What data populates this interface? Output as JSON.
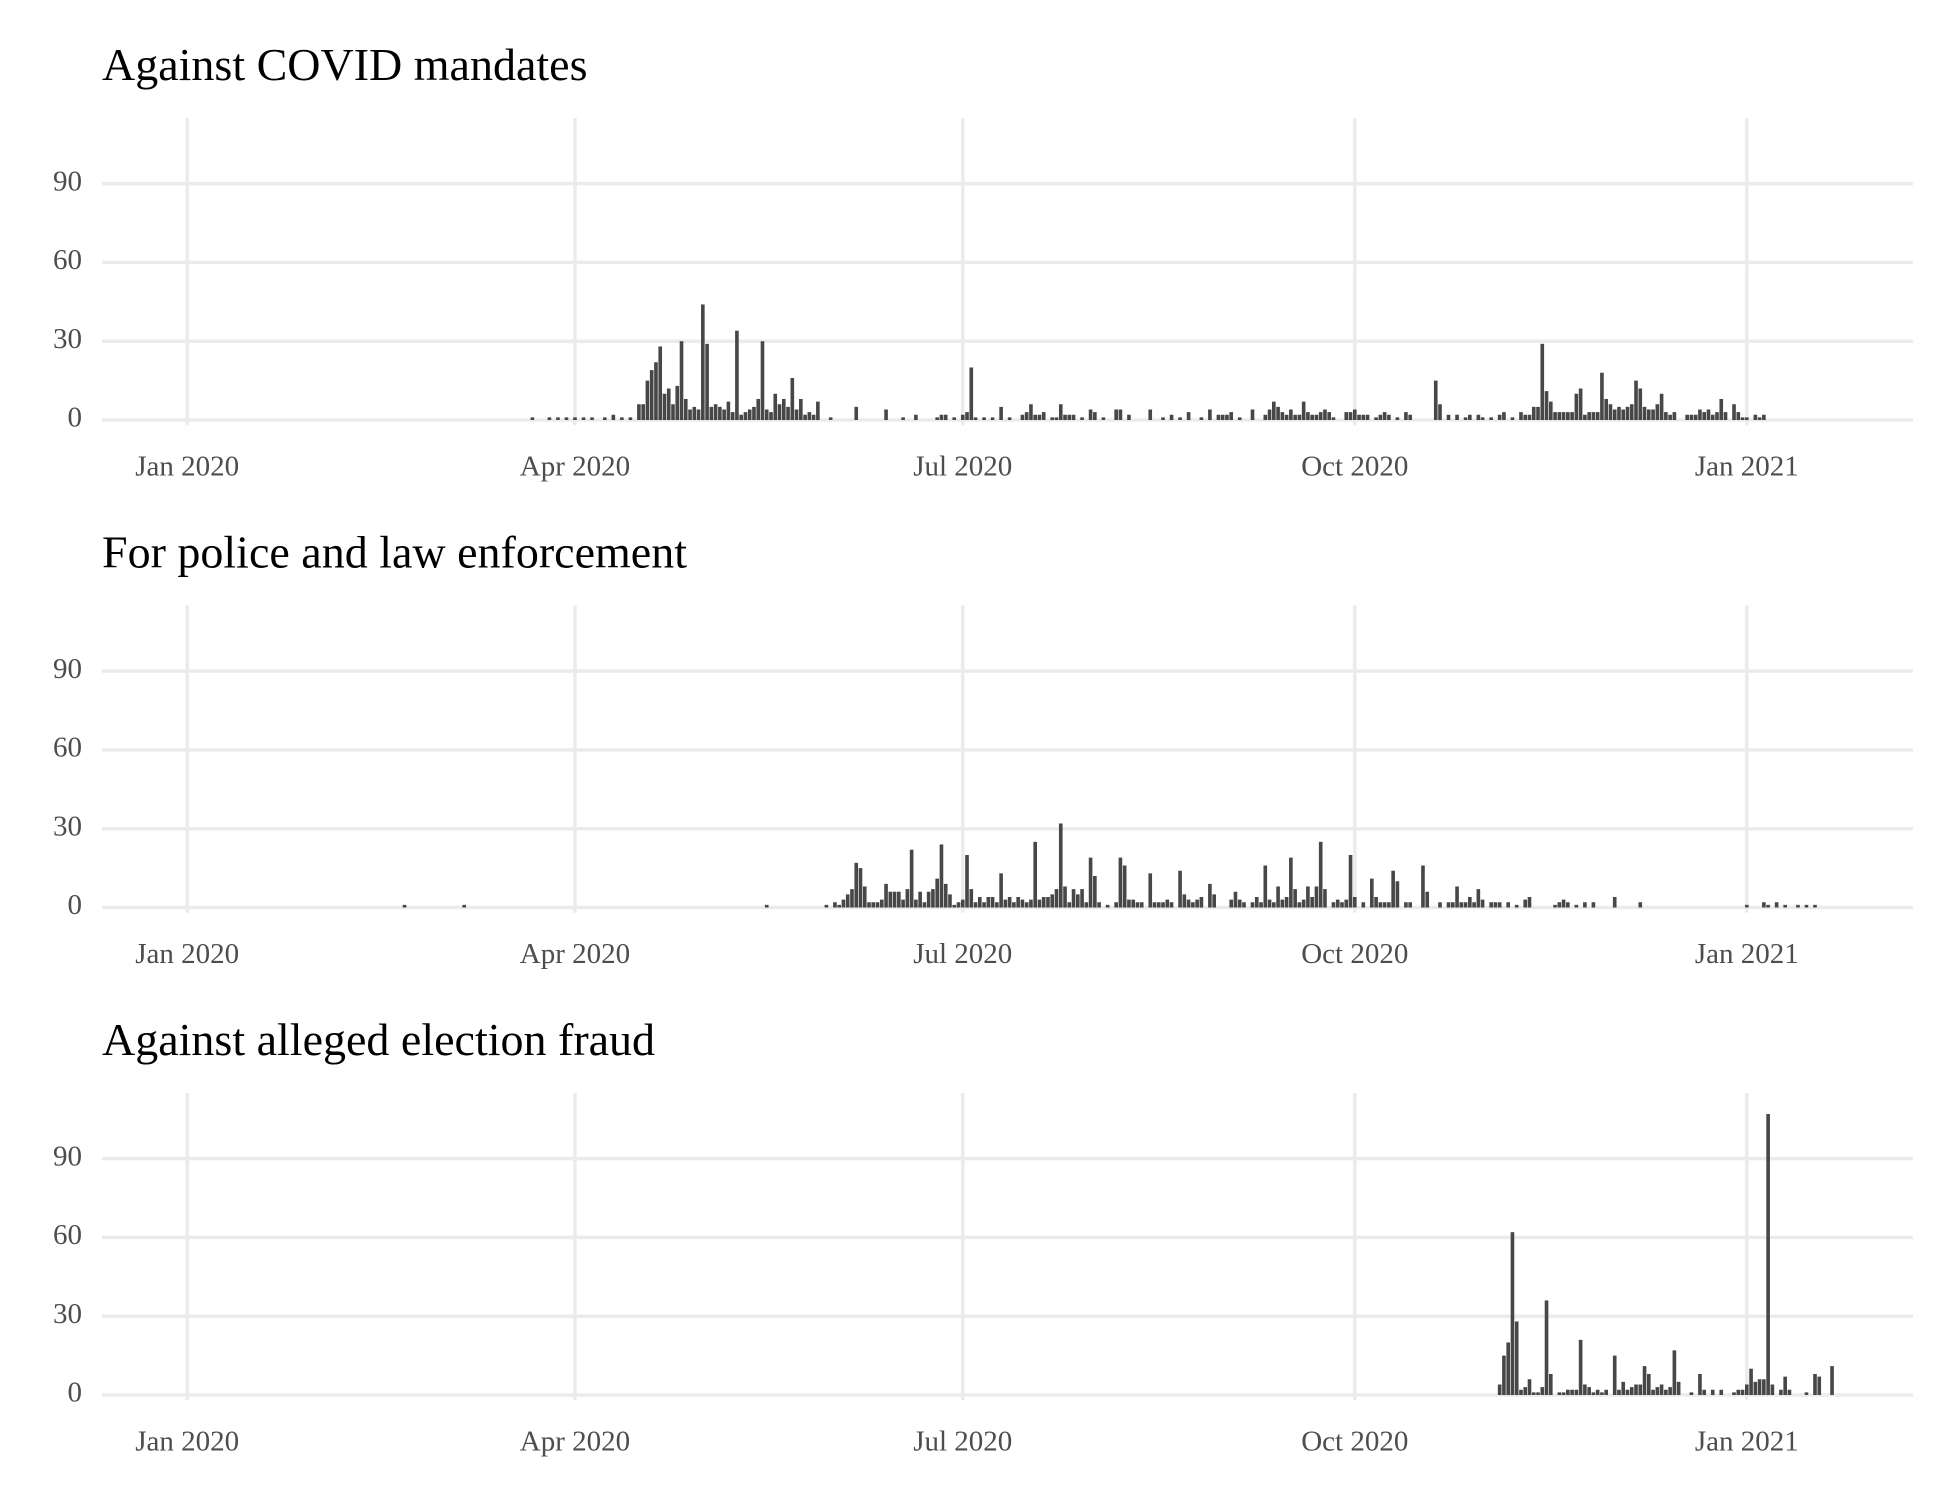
{
  "chart_data": [
    {
      "type": "bar",
      "title": "Against COVID mandates",
      "color": "#474747",
      "grid": true,
      "xlim": [
        -20,
        405
      ],
      "ylim": [
        -2,
        115
      ],
      "yticks": [
        0,
        30,
        60,
        90
      ],
      "xticks": [
        {
          "value": 0,
          "label": "Jan 2020"
        },
        {
          "value": 91,
          "label": "Apr 2020"
        },
        {
          "value": 182,
          "label": "Jul 2020"
        },
        {
          "value": 274,
          "label": "Oct 2020"
        },
        {
          "value": 366,
          "label": "Jan 2021"
        }
      ],
      "x": [
        81,
        85,
        87,
        89,
        91,
        93,
        95,
        98,
        100,
        102,
        104,
        106,
        107,
        108,
        109,
        110,
        111,
        112,
        113,
        114,
        115,
        116,
        117,
        118,
        119,
        120,
        121,
        122,
        123,
        124,
        125,
        126,
        127,
        128,
        129,
        130,
        131,
        132,
        133,
        134,
        135,
        136,
        137,
        138,
        139,
        140,
        141,
        142,
        143,
        144,
        145,
        146,
        147,
        148,
        151,
        157,
        164,
        168,
        171,
        176,
        177,
        178,
        180,
        182,
        183,
        184,
        185,
        187,
        189,
        191,
        193,
        196,
        197,
        198,
        199,
        200,
        201,
        203,
        204,
        205,
        206,
        207,
        208,
        210,
        212,
        213,
        215,
        218,
        219,
        221,
        226,
        229,
        231,
        233,
        235,
        238,
        240,
        242,
        243,
        244,
        245,
        247,
        250,
        253,
        254,
        255,
        256,
        257,
        258,
        259,
        260,
        261,
        262,
        263,
        264,
        265,
        266,
        267,
        268,
        269,
        272,
        273,
        274,
        275,
        276,
        277,
        279,
        280,
        281,
        282,
        284,
        286,
        287,
        293,
        294,
        296,
        298,
        300,
        301,
        303,
        304,
        306,
        308,
        309,
        311,
        313,
        314,
        315,
        316,
        317,
        318,
        319,
        320,
        321,
        322,
        323,
        324,
        325,
        326,
        327,
        328,
        329,
        330,
        331,
        332,
        333,
        334,
        335,
        336,
        337,
        338,
        339,
        340,
        341,
        342,
        343,
        344,
        345,
        346,
        347,
        348,
        349,
        352,
        353,
        354,
        355,
        356,
        357,
        358,
        359,
        360,
        361,
        363,
        364,
        365,
        366,
        368,
        369,
        370
      ],
      "values": [
        1,
        1,
        1,
        1,
        1,
        1,
        1,
        1,
        2,
        1,
        1,
        6,
        6,
        15,
        19,
        22,
        28,
        10,
        12,
        6,
        13,
        30,
        8,
        4,
        5,
        4,
        44,
        29,
        5,
        6,
        5,
        4,
        7,
        3,
        34,
        2,
        3,
        4,
        5,
        8,
        30,
        4,
        3,
        10,
        6,
        8,
        5,
        16,
        4,
        8,
        2,
        3,
        2,
        7,
        1,
        5,
        4,
        1,
        2,
        1,
        2,
        2,
        1,
        2,
        3,
        20,
        1,
        1,
        1,
        5,
        1,
        2,
        3,
        6,
        2,
        2,
        3,
        1,
        1,
        6,
        2,
        2,
        2,
        1,
        4,
        3,
        1,
        4,
        4,
        2,
        4,
        1,
        2,
        1,
        3,
        1,
        4,
        2,
        2,
        2,
        3,
        1,
        4,
        2,
        4,
        7,
        5,
        3,
        2,
        4,
        2,
        2,
        7,
        3,
        2,
        2,
        3,
        4,
        3,
        1,
        3,
        3,
        4,
        2,
        2,
        2,
        1,
        2,
        3,
        2,
        1,
        3,
        2,
        15,
        6,
        2,
        2,
        1,
        2,
        2,
        1,
        1,
        2,
        3,
        1,
        3,
        2,
        2,
        5,
        5,
        29,
        11,
        7,
        3,
        3,
        3,
        3,
        3,
        10,
        12,
        2,
        3,
        3,
        3,
        18,
        8,
        6,
        4,
        5,
        4,
        5,
        6,
        15,
        12,
        5,
        4,
        4,
        6,
        10,
        3,
        2,
        3,
        2,
        2,
        2,
        4,
        3,
        4,
        2,
        3,
        8,
        3,
        6,
        3,
        1,
        1,
        2,
        1,
        2
      ]
    },
    {
      "type": "bar",
      "title": "For police and law enforcement",
      "color": "#474747",
      "grid": true,
      "xlim": [
        -20,
        405
      ],
      "ylim": [
        -2,
        115
      ],
      "yticks": [
        0,
        30,
        60,
        90
      ],
      "xticks": [
        {
          "value": 0,
          "label": "Jan 2020"
        },
        {
          "value": 91,
          "label": "Apr 2020"
        },
        {
          "value": 182,
          "label": "Jul 2020"
        },
        {
          "value": 274,
          "label": "Oct 2020"
        },
        {
          "value": 366,
          "label": "Jan 2021"
        }
      ],
      "x": [
        51,
        65,
        136,
        150,
        152,
        153,
        154,
        155,
        156,
        157,
        158,
        159,
        160,
        161,
        162,
        163,
        164,
        165,
        166,
        167,
        168,
        169,
        170,
        171,
        172,
        173,
        174,
        175,
        176,
        177,
        178,
        179,
        180,
        181,
        182,
        183,
        184,
        185,
        186,
        187,
        188,
        189,
        190,
        191,
        192,
        193,
        194,
        195,
        196,
        197,
        198,
        199,
        200,
        201,
        202,
        203,
        204,
        205,
        206,
        207,
        208,
        209,
        210,
        211,
        212,
        213,
        214,
        216,
        218,
        219,
        220,
        221,
        222,
        223,
        224,
        226,
        227,
        228,
        229,
        230,
        231,
        233,
        234,
        235,
        236,
        237,
        238,
        240,
        241,
        245,
        246,
        247,
        248,
        250,
        251,
        252,
        253,
        254,
        255,
        256,
        257,
        258,
        259,
        260,
        261,
        262,
        263,
        264,
        265,
        266,
        267,
        269,
        270,
        271,
        272,
        273,
        274,
        276,
        278,
        279,
        280,
        281,
        282,
        283,
        284,
        286,
        287,
        290,
        291,
        294,
        296,
        297,
        298,
        299,
        300,
        301,
        302,
        303,
        304,
        306,
        307,
        308,
        310,
        312,
        314,
        315,
        321,
        322,
        323,
        324,
        326,
        328,
        330,
        335,
        341,
        366,
        370,
        371,
        373,
        375,
        378,
        380,
        382
      ],
      "values": [
        1,
        1,
        1,
        1,
        2,
        1,
        3,
        5,
        7,
        17,
        15,
        8,
        2,
        2,
        2,
        3,
        9,
        6,
        6,
        6,
        3,
        7,
        22,
        3,
        6,
        2,
        6,
        7,
        11,
        24,
        9,
        5,
        1,
        2,
        3,
        20,
        7,
        2,
        4,
        2,
        4,
        4,
        2,
        13,
        3,
        4,
        2,
        4,
        3,
        2,
        3,
        25,
        3,
        4,
        4,
        5,
        7,
        32,
        8,
        2,
        7,
        5,
        7,
        2,
        19,
        12,
        2,
        1,
        2,
        19,
        16,
        3,
        3,
        2,
        2,
        13,
        2,
        2,
        2,
        3,
        2,
        14,
        5,
        3,
        2,
        3,
        4,
        9,
        5,
        3,
        6,
        3,
        2,
        2,
        4,
        2,
        16,
        3,
        2,
        8,
        3,
        4,
        19,
        7,
        2,
        3,
        8,
        4,
        8,
        25,
        7,
        2,
        3,
        2,
        3,
        20,
        4,
        2,
        11,
        4,
        2,
        2,
        2,
        14,
        10,
        2,
        2,
        16,
        6,
        2,
        2,
        2,
        8,
        2,
        2,
        4,
        2,
        7,
        3,
        2,
        2,
        2,
        2,
        1,
        3,
        4,
        1,
        2,
        3,
        2,
        1,
        2,
        2,
        4,
        2,
        1,
        2,
        1,
        2,
        1,
        1,
        1,
        1
      ]
    },
    {
      "type": "bar",
      "title": "Against alleged election fraud",
      "color": "#474747",
      "grid": true,
      "xlim": [
        -20,
        405
      ],
      "ylim": [
        -2,
        115
      ],
      "yticks": [
        0,
        30,
        60,
        90
      ],
      "xticks": [
        {
          "value": 0,
          "label": "Jan 2020"
        },
        {
          "value": 91,
          "label": "Apr 2020"
        },
        {
          "value": 182,
          "label": "Jul 2020"
        },
        {
          "value": 274,
          "label": "Oct 2020"
        },
        {
          "value": 366,
          "label": "Jan 2021"
        }
      ],
      "x": [
        308,
        309,
        310,
        311,
        312,
        313,
        314,
        315,
        316,
        317,
        318,
        319,
        320,
        322,
        323,
        324,
        325,
        326,
        327,
        328,
        329,
        330,
        331,
        332,
        333,
        335,
        336,
        337,
        338,
        339,
        340,
        341,
        342,
        343,
        344,
        345,
        346,
        347,
        348,
        349,
        350,
        353,
        355,
        356,
        358,
        360,
        363,
        364,
        365,
        366,
        367,
        368,
        369,
        370,
        371,
        372,
        374,
        375,
        376,
        380,
        382,
        383,
        386
      ],
      "values": [
        4,
        15,
        20,
        62,
        28,
        2,
        3,
        6,
        1,
        1,
        3,
        36,
        8,
        1,
        1,
        2,
        2,
        2,
        21,
        4,
        3,
        1,
        2,
        1,
        2,
        15,
        2,
        5,
        2,
        3,
        4,
        4,
        11,
        8,
        2,
        3,
        4,
        2,
        3,
        17,
        5,
        1,
        8,
        2,
        2,
        2,
        1,
        2,
        2,
        4,
        10,
        5,
        6,
        6,
        107,
        4,
        2,
        7,
        2,
        1,
        8,
        7,
        11
      ]
    }
  ]
}
